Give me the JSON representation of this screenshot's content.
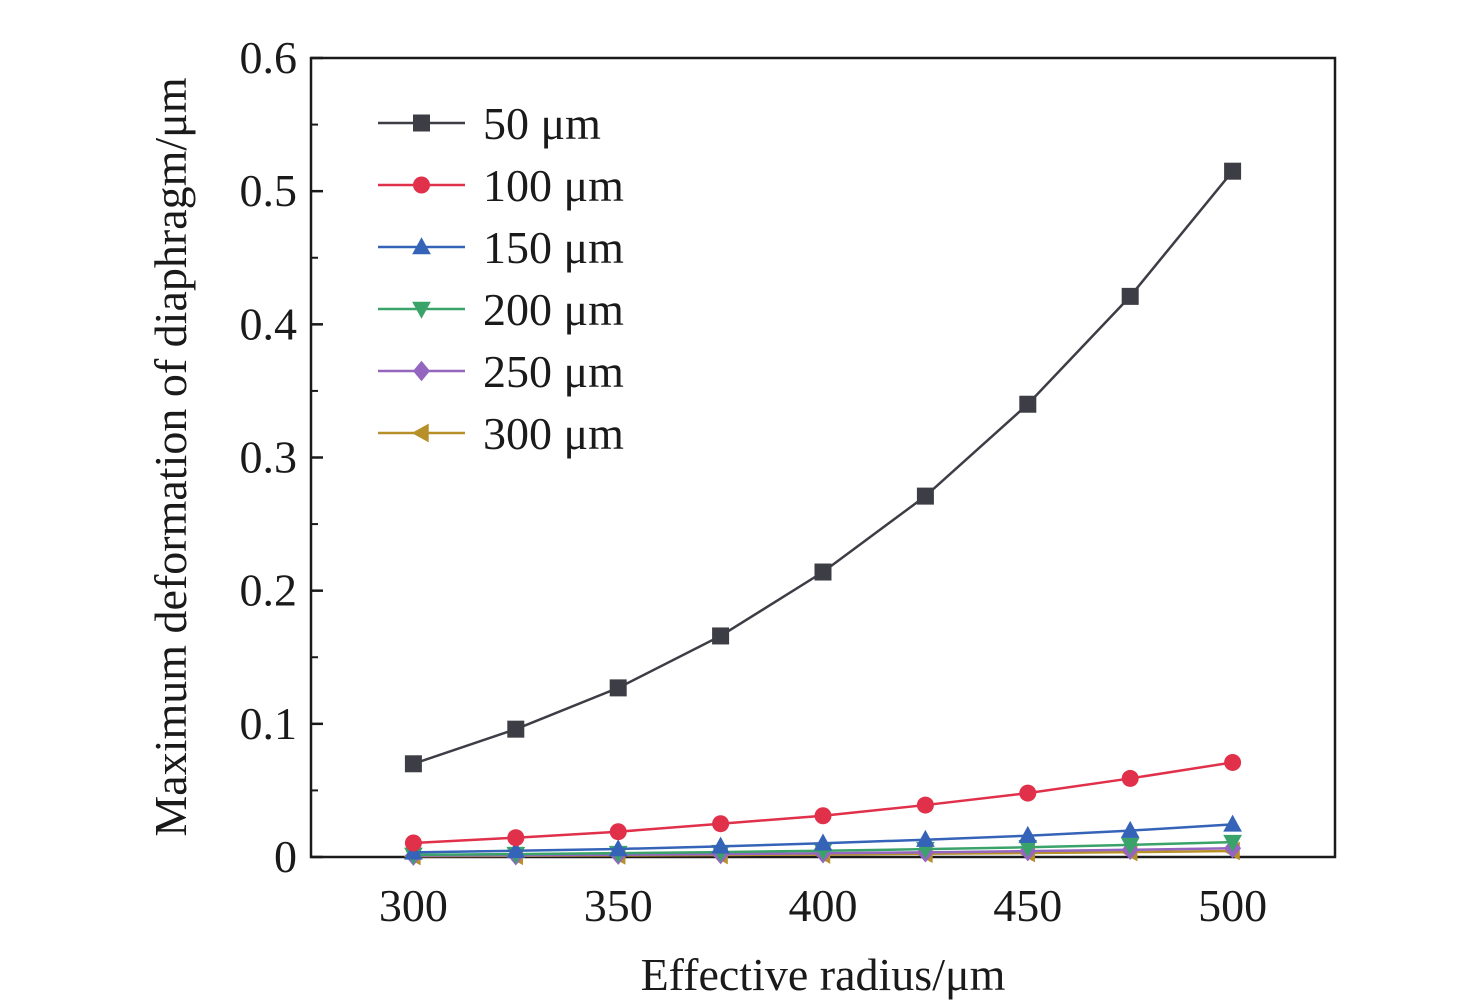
{
  "chart_data": {
    "type": "line",
    "title": "",
    "xlabel": "Effective radius/μm",
    "ylabel": "Maximum deformation of diaphragm/μm",
    "x": [
      300,
      325,
      350,
      375,
      400,
      425,
      450,
      475,
      500
    ],
    "xlim": [
      275,
      525
    ],
    "ylim": [
      0,
      0.6
    ],
    "xticks": [
      300,
      350,
      400,
      450,
      500
    ],
    "xtick_labels": [
      "300",
      "350",
      "400",
      "450",
      "500"
    ],
    "yticks": [
      0,
      0.1,
      0.2,
      0.3,
      0.4,
      0.5,
      0.6
    ],
    "ytick_labels": [
      "0",
      "0.1",
      "0.2",
      "0.3",
      "0.4",
      "0.5",
      "0.6"
    ],
    "grid": false,
    "legend_position": "top-left",
    "series": [
      {
        "name": "50 μm",
        "color": "#3d3d45",
        "marker": "square",
        "values": [
          0.07,
          0.096,
          0.127,
          0.166,
          0.214,
          0.271,
          0.34,
          0.421,
          0.515
        ]
      },
      {
        "name": "100 μm",
        "color": "#e0304a",
        "marker": "circle",
        "values": [
          0.0105,
          0.0145,
          0.019,
          0.025,
          0.031,
          0.039,
          0.048,
          0.059,
          0.071
        ]
      },
      {
        "name": "150 μm",
        "color": "#3563b8",
        "marker": "triangle-up",
        "values": [
          0.0035,
          0.0047,
          0.006,
          0.008,
          0.0103,
          0.013,
          0.016,
          0.0198,
          0.0245
        ]
      },
      {
        "name": "200 μm",
        "color": "#3aa36a",
        "marker": "triangle-down",
        "values": [
          0.0016,
          0.0022,
          0.0029,
          0.0037,
          0.0047,
          0.0059,
          0.0073,
          0.0091,
          0.0112
        ]
      },
      {
        "name": "250 μm",
        "color": "#9466c0",
        "marker": "diamond",
        "values": [
          0.001,
          0.0013,
          0.0017,
          0.0022,
          0.0028,
          0.0035,
          0.0044,
          0.0054,
          0.0066
        ]
      },
      {
        "name": "300 μm",
        "color": "#b8902a",
        "marker": "triangle-left",
        "values": [
          0.0007,
          0.0009,
          0.0012,
          0.0015,
          0.0019,
          0.0024,
          0.003,
          0.0037,
          0.0045
        ]
      }
    ]
  }
}
